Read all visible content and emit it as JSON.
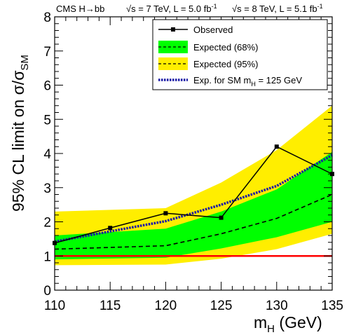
{
  "header": {
    "experiment": "CMS H→bb",
    "lumi_7tev_prefix": "√s = 7 TeV, L = 5.0 fb",
    "lumi_8tev_prefix": "√s = 8 TeV, L = 5.1 fb",
    "lumi_exponent": "-1"
  },
  "axes": {
    "ylabel_text": "95% CL limit on σ/σ",
    "ylabel_sub": "SM",
    "xlabel_text": "m",
    "xlabel_sub": "H",
    "xlabel_unit": " (GeV)"
  },
  "legend": {
    "observed": "Observed",
    "expected68": "Expected (68%)",
    "expected95": "Expected (95%)",
    "sm125_prefix": "Exp. for SM m",
    "sm125_sub": "H",
    "sm125_suffix": " = 125 GeV"
  },
  "colors": {
    "band68": "#00ff00",
    "band95": "#ffee00",
    "sm_line": "#ff0000",
    "sm125_line": "#1a1aa6",
    "observed": "#000000"
  },
  "chart_data": {
    "type": "line",
    "x": [
      110,
      115,
      120,
      125,
      130,
      135
    ],
    "xlim": [
      110,
      135
    ],
    "ylim": [
      0,
      8
    ],
    "xticks": [
      110,
      115,
      120,
      125,
      130,
      135
    ],
    "yticks": [
      0,
      1,
      2,
      3,
      4,
      5,
      6,
      7,
      8
    ],
    "grid": false,
    "legend_position": "top-right",
    "series": [
      {
        "name": "Observed",
        "x": [
          110,
          115,
          120,
          125,
          130,
          135
        ],
        "values": [
          1.38,
          1.82,
          2.25,
          2.12,
          4.2,
          3.4
        ]
      },
      {
        "name": "Expected (68%)",
        "x": [
          110,
          120,
          125,
          130,
          135
        ],
        "values": [
          1.2,
          1.3,
          1.65,
          2.1,
          2.8
        ],
        "band_low": [
          0.9,
          0.95,
          1.22,
          1.55,
          2.0
        ],
        "band_high": [
          1.6,
          1.8,
          2.3,
          2.95,
          4.05
        ]
      },
      {
        "name": "Expected (95%)",
        "x": [
          110,
          120,
          125,
          130,
          135
        ],
        "band_low": [
          0.73,
          0.75,
          0.92,
          1.2,
          1.65
        ],
        "band_high": [
          2.3,
          2.4,
          3.15,
          4.1,
          5.4
        ]
      },
      {
        "name": "Exp. for SM mH = 125 GeV",
        "x": [
          110,
          120,
          125,
          130,
          135
        ],
        "values": [
          1.42,
          2.02,
          2.5,
          3.05,
          3.95
        ]
      }
    ],
    "reference_line": 1
  }
}
